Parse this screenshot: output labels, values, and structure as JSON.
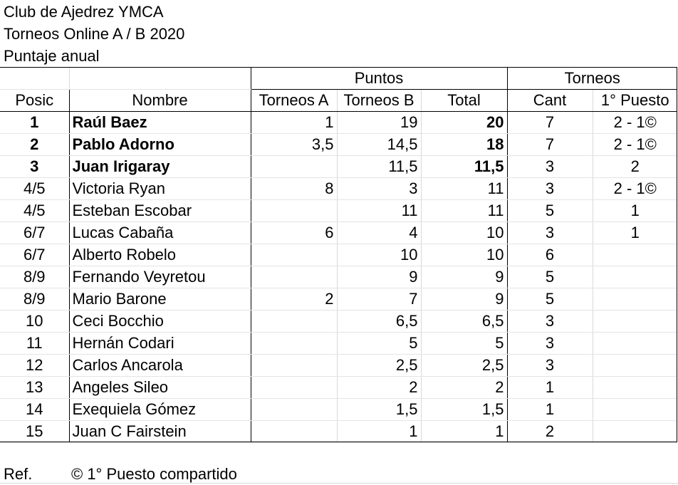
{
  "header": {
    "line1": "Club de Ajedrez YMCA",
    "line2": "Torneos Online A / B 2020",
    "line3": "Puntaje anual"
  },
  "groups": {
    "puntos": "Puntos",
    "torneos": "Torneos"
  },
  "columns": {
    "posic": "Posic",
    "nombre": "Nombre",
    "torneos_a": "Torneos A",
    "torneos_b": "Torneos B",
    "total": "Total",
    "cant": "Cant",
    "primer_puesto": "1° Puesto"
  },
  "rows": [
    {
      "pos": "1",
      "name": "Raúl Baez",
      "a": "1",
      "b": "19",
      "total": "20",
      "cant": "7",
      "first": "2 - 1©",
      "bold": true
    },
    {
      "pos": "2",
      "name": "Pablo Adorno",
      "a": "3,5",
      "b": "14,5",
      "total": "18",
      "cant": "7",
      "first": "2 - 1©",
      "bold": true
    },
    {
      "pos": "3",
      "name": "Juan Irigaray",
      "a": "",
      "b": "11,5",
      "total": "11,5",
      "cant": "3",
      "first": "2",
      "bold": true
    },
    {
      "pos": "4/5",
      "name": "Victoria Ryan",
      "a": "8",
      "b": "3",
      "total": "11",
      "cant": "3",
      "first": "2 - 1©",
      "bold": false
    },
    {
      "pos": "4/5",
      "name": "Esteban Escobar",
      "a": "",
      "b": "11",
      "total": "11",
      "cant": "5",
      "first": "1",
      "bold": false
    },
    {
      "pos": "6/7",
      "name": "Lucas  Cabaña",
      "a": "6",
      "b": "4",
      "total": "10",
      "cant": "3",
      "first": "1",
      "bold": false
    },
    {
      "pos": "6/7",
      "name": "Alberto Robelo",
      "a": "",
      "b": "10",
      "total": "10",
      "cant": "6",
      "first": "",
      "bold": false
    },
    {
      "pos": "8/9",
      "name": "Fernando Veyretou",
      "a": "",
      "b": "9",
      "total": "9",
      "cant": "5",
      "first": "",
      "bold": false
    },
    {
      "pos": "8/9",
      "name": "Mario Barone",
      "a": "2",
      "b": "7",
      "total": "9",
      "cant": "5",
      "first": "",
      "bold": false
    },
    {
      "pos": "10",
      "name": "Ceci Bocchio",
      "a": "",
      "b": "6,5",
      "total": "6,5",
      "cant": "3",
      "first": "",
      "bold": false
    },
    {
      "pos": "11",
      "name": "Hernán Codari",
      "a": "",
      "b": "5",
      "total": "5",
      "cant": "3",
      "first": "",
      "bold": false
    },
    {
      "pos": "12",
      "name": "Carlos Ancarola",
      "a": "",
      "b": "2,5",
      "total": "2,5",
      "cant": "3",
      "first": "",
      "bold": false
    },
    {
      "pos": "13",
      "name": "Angeles Sileo",
      "a": "",
      "b": "2",
      "total": "2",
      "cant": "1",
      "first": "",
      "bold": false
    },
    {
      "pos": "14",
      "name": "Exequiela Gómez",
      "a": "",
      "b": "1,5",
      "total": "1,5",
      "cant": "1",
      "first": "",
      "bold": false
    },
    {
      "pos": "15",
      "name": "Juan C Fairstein",
      "a": "",
      "b": "1",
      "total": "1",
      "cant": "2",
      "first": "",
      "bold": false
    }
  ],
  "footer": {
    "ref_label": "Ref.",
    "ref_text": "© 1° Puesto compartido"
  }
}
